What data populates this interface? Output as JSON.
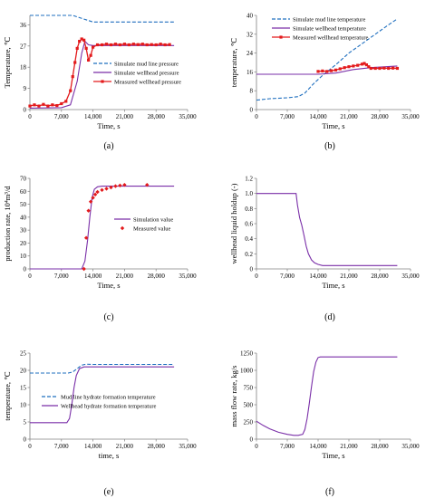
{
  "colors": {
    "blue": "#1f6fbf",
    "purple": "#7a2fa8",
    "red": "#e31a1c",
    "axis": "#808080"
  },
  "chart_data": [
    {
      "id": "a",
      "panel_label": "(a)",
      "type": "line",
      "xlabel": "Time, s",
      "ylabel": "Temperature, ℃",
      "xlim": [
        0,
        35000
      ],
      "ylim": [
        0,
        40
      ],
      "xticks": [
        "0",
        "7,000",
        "14,000",
        "21,000",
        "28,000",
        "35,000"
      ],
      "yticks": [
        "0",
        "9",
        "18",
        "27",
        "36"
      ],
      "legend_position": "middle-right",
      "series": [
        {
          "name": "Simulate mud line pressure",
          "style": "dashed",
          "color": "blue",
          "x": [
            0,
            9500,
            14000,
            16000,
            32000
          ],
          "y": [
            40,
            40,
            37.2,
            37.2,
            37.2
          ]
        },
        {
          "name": "Simulate wellhead pressure",
          "style": "solid",
          "color": "purple",
          "x": [
            0,
            7000,
            9000,
            10500,
            11500,
            12200,
            13000,
            14000,
            16000,
            32000
          ],
          "y": [
            0.6,
            0.8,
            2,
            12,
            24,
            29,
            27.5,
            27.2,
            27.2,
            27.2
          ]
        },
        {
          "name": "Measured wellhead pressure",
          "style": "solid-marker",
          "color": "red",
          "x": [
            0,
            1000,
            2000,
            3000,
            4000,
            5000,
            6000,
            7000,
            8000,
            9000,
            9500,
            10000,
            10500,
            11000,
            11500,
            12000,
            12500,
            13000,
            13500,
            14000,
            15000,
            16000,
            17000,
            18000,
            19000,
            20000,
            21000,
            22000,
            23000,
            24000,
            25000,
            26000,
            27000,
            28000,
            29000,
            30000,
            31000
          ],
          "y": [
            1.5,
            2,
            1.5,
            2.2,
            1.5,
            2,
            1.7,
            2.5,
            3.5,
            8,
            14,
            20,
            26,
            29,
            30,
            29.5,
            26,
            21,
            23,
            26.5,
            27.5,
            27.5,
            27.8,
            27.5,
            27.8,
            27.5,
            27.8,
            27.5,
            27.8,
            27.6,
            27.8,
            27.5,
            27.6,
            27.5,
            27.8,
            27.5,
            27.6
          ]
        }
      ]
    },
    {
      "id": "b",
      "panel_label": "(b)",
      "type": "line",
      "xlabel": "Time, s",
      "ylabel": "temperature, ℃",
      "xlim": [
        0,
        35000
      ],
      "ylim": [
        0,
        40
      ],
      "xticks": [
        "0",
        "7,000",
        "14,000",
        "21,000",
        "28,000",
        "35,000"
      ],
      "yticks": [
        "0",
        "8",
        "16",
        "24",
        "32",
        "40"
      ],
      "legend_position": "top-left",
      "series": [
        {
          "name": "Simulate mud line temperature",
          "style": "dashed",
          "color": "blue",
          "x": [
            0,
            3000,
            7000,
            9500,
            11000,
            13000,
            15000,
            18000,
            21000,
            24000,
            27000,
            30000,
            32000
          ],
          "y": [
            4,
            4.6,
            5,
            5.5,
            7,
            11,
            14.5,
            19,
            24,
            28,
            32,
            36,
            38.5
          ]
        },
        {
          "name": "Simulate wellhead temperature",
          "style": "solid",
          "color": "purple",
          "x": [
            0,
            14000,
            18000,
            22000,
            26000,
            32000
          ],
          "y": [
            15,
            15,
            15.5,
            17,
            17.8,
            18.5
          ]
        },
        {
          "name": "Measured wellhead temperature",
          "style": "solid-marker",
          "color": "red",
          "x": [
            14000,
            15000,
            16000,
            17000,
            18000,
            19000,
            20000,
            21000,
            22000,
            23000,
            24000,
            24500,
            25000,
            25500,
            26000,
            27000,
            28000,
            29000,
            30000,
            31000,
            32000
          ],
          "y": [
            16.2,
            16.4,
            16.2,
            16.5,
            16.8,
            17.3,
            17.8,
            18.2,
            18.5,
            18.8,
            19.3,
            19.6,
            19,
            18.2,
            17.5,
            17.5,
            17.5,
            17.6,
            17.5,
            17.6,
            17.5
          ]
        }
      ]
    },
    {
      "id": "c",
      "panel_label": "(c)",
      "type": "line",
      "xlabel": "Time, s",
      "ylabel": "production rate, 10⁴m³/d",
      "xlim": [
        0,
        35000
      ],
      "ylim": [
        0,
        70
      ],
      "xticks": [
        "0",
        "7,000",
        "14,000",
        "21,000",
        "28,000",
        "35,000"
      ],
      "yticks": [
        "0",
        "10",
        "20",
        "30",
        "40",
        "50",
        "60",
        "70"
      ],
      "legend_position": "middle-right",
      "series": [
        {
          "name": "Simulation value",
          "style": "solid",
          "color": "purple",
          "x": [
            0,
            11500,
            12200,
            12800,
            13300,
            13800,
            14300,
            15000,
            16000,
            32000
          ],
          "y": [
            0,
            0,
            6,
            22,
            40,
            55,
            61.5,
            63.5,
            64,
            64
          ]
        },
        {
          "name": "Measured value",
          "style": "marker",
          "color": "red",
          "x": [
            12000,
            12500,
            13000,
            13500,
            14000,
            14500,
            15000,
            16000,
            17000,
            18000,
            19000,
            20000,
            21000,
            26000
          ],
          "y": [
            0,
            24,
            45,
            52,
            55,
            57.5,
            59.5,
            61,
            62,
            63,
            64,
            64.5,
            65,
            65
          ]
        }
      ]
    },
    {
      "id": "d",
      "panel_label": "(d)",
      "type": "line",
      "xlabel": "Time, s",
      "ylabel": "wellhead liquid holdup (-)",
      "xlim": [
        0,
        35000
      ],
      "ylim": [
        0,
        1.2
      ],
      "xticks": [
        "0",
        "7,000",
        "14,000",
        "21,000",
        "28,000",
        "35,000"
      ],
      "yticks": [
        "0",
        "0.2",
        "0.4",
        "0.6",
        "0.8",
        "1.0",
        "1.2"
      ],
      "series": [
        {
          "name": "",
          "style": "solid",
          "color": "purple",
          "x": [
            0,
            9000,
            9300,
            9800,
            10300,
            10800,
            11300,
            11800,
            12500,
            13200,
            14000,
            15000,
            32000
          ],
          "y": [
            1,
            1,
            0.85,
            0.68,
            0.58,
            0.44,
            0.3,
            0.2,
            0.12,
            0.08,
            0.06,
            0.045,
            0.045
          ]
        }
      ]
    },
    {
      "id": "e",
      "panel_label": "(e)",
      "type": "line",
      "xlabel": "time, s",
      "ylabel": "temperature, ℃",
      "xlim": [
        0,
        35000
      ],
      "ylim": [
        0,
        25
      ],
      "xticks": [
        "0",
        "7,000",
        "14,000",
        "21,000",
        "28,000",
        "35,000"
      ],
      "yticks": [
        "0",
        "5",
        "10",
        "15",
        "20",
        "25"
      ],
      "legend_position": "middle-right",
      "series": [
        {
          "name": "Mud line hydrate formation temperature",
          "style": "dashed",
          "color": "blue",
          "x": [
            0,
            8500,
            9500,
            10500,
            11500,
            12500,
            14000,
            32000
          ],
          "y": [
            19.2,
            19.2,
            19.5,
            20.5,
            21.5,
            21.8,
            21.7,
            21.7
          ]
        },
        {
          "name": "Wellhead hydrate formation temperature",
          "style": "solid",
          "color": "purple",
          "x": [
            0,
            8200,
            8800,
            9300,
            9800,
            10300,
            11000,
            12000,
            14000,
            32000
          ],
          "y": [
            4.8,
            4.8,
            6,
            10,
            15,
            18.5,
            20.5,
            21,
            21,
            21
          ]
        }
      ]
    },
    {
      "id": "f",
      "panel_label": "(f)",
      "type": "line",
      "xlabel": "Time, s",
      "ylabel": "mass flow rate, kg/s",
      "xlim": [
        0,
        35000
      ],
      "ylim": [
        0,
        1250
      ],
      "xticks": [
        "0",
        "7,000",
        "14,000",
        "21,000",
        "28,000",
        "35,000"
      ],
      "yticks": [
        "0",
        "250",
        "500",
        "750",
        "1000",
        "1250"
      ],
      "series": [
        {
          "name": "",
          "style": "solid",
          "color": "purple",
          "x": [
            0,
            1500,
            3000,
            5000,
            7000,
            8500,
            9500,
            10500,
            11000,
            11500,
            12000,
            12500,
            13000,
            13500,
            14000,
            14500,
            15500,
            32000
          ],
          "y": [
            260,
            200,
            150,
            100,
            70,
            55,
            55,
            70,
            140,
            300,
            520,
            760,
            980,
            1120,
            1185,
            1195,
            1195,
            1195
          ]
        }
      ]
    }
  ]
}
